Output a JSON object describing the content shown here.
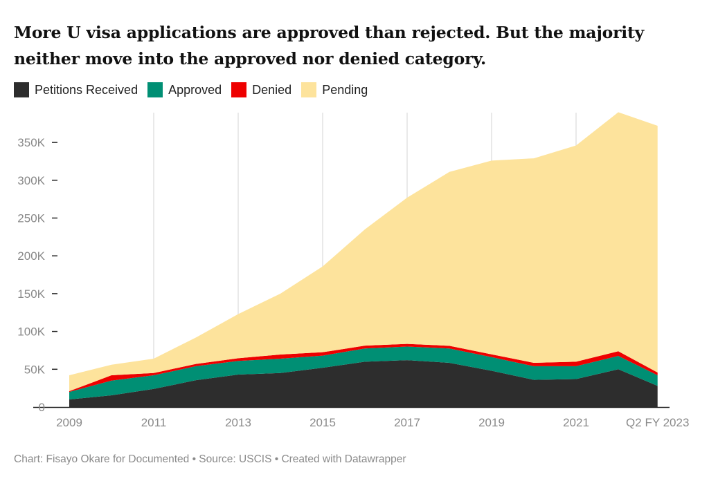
{
  "chart_data": {
    "type": "area",
    "stacked": true,
    "title": "More U visa applications are approved than rejected. But the majority neither move into the approved nor denied category.",
    "x": [
      2009,
      2010,
      2011,
      2012,
      2013,
      2014,
      2015,
      2016,
      2017,
      2018,
      2019,
      2020,
      2021,
      2022,
      2022.93
    ],
    "x_tick_labels": [
      {
        "x": 2009,
        "label": "2009"
      },
      {
        "x": 2011,
        "label": "2011"
      },
      {
        "x": 2013,
        "label": "2013"
      },
      {
        "x": 2015,
        "label": "2015"
      },
      {
        "x": 2017,
        "label": "2017"
      },
      {
        "x": 2019,
        "label": "2019"
      },
      {
        "x": 2021,
        "label": "2021"
      },
      {
        "x": 2022.93,
        "label": "Q2 FY 2023"
      }
    ],
    "y_ticks": [
      {
        "v": 0,
        "label": "0"
      },
      {
        "v": 50000,
        "label": "50K"
      },
      {
        "v": 100000,
        "label": "100K"
      },
      {
        "v": 150000,
        "label": "150K"
      },
      {
        "v": 200000,
        "label": "200K"
      },
      {
        "v": 250000,
        "label": "250K"
      },
      {
        "v": 300000,
        "label": "300K"
      },
      {
        "v": 350000,
        "label": "350K"
      }
    ],
    "ylim": [
      0,
      390000
    ],
    "xlabel": "",
    "ylabel": "",
    "legend_position": "top-left",
    "series": [
      {
        "name": "Petitions Received",
        "color": "#2d2d2d",
        "values": [
          10000,
          15500,
          24000,
          35500,
          43000,
          45000,
          52000,
          60000,
          62000,
          58500,
          48000,
          36000,
          37000,
          50000,
          28000
        ]
      },
      {
        "name": "Approved",
        "color": "#008f74",
        "values": [
          10000,
          19500,
          18000,
          18500,
          18000,
          19000,
          16000,
          17500,
          18000,
          19000,
          18000,
          18000,
          17000,
          17600,
          14000
        ]
      },
      {
        "name": "Denied",
        "color": "#ee0000",
        "values": [
          1000,
          7000,
          3000,
          3000,
          3600,
          5500,
          4500,
          3700,
          3500,
          3500,
          3700,
          4500,
          6000,
          6200,
          3700
        ]
      },
      {
        "name": "Pending",
        "color": "#fde39c",
        "values": [
          21000,
          14000,
          19000,
          35000,
          58400,
          80500,
          113500,
          153800,
          193500,
          230000,
          256300,
          270500,
          286000,
          316200,
          326300
        ]
      }
    ]
  },
  "footer": "Chart: Fisayo Okare for Documented • Source: USCIS • Created with Datawrapper"
}
